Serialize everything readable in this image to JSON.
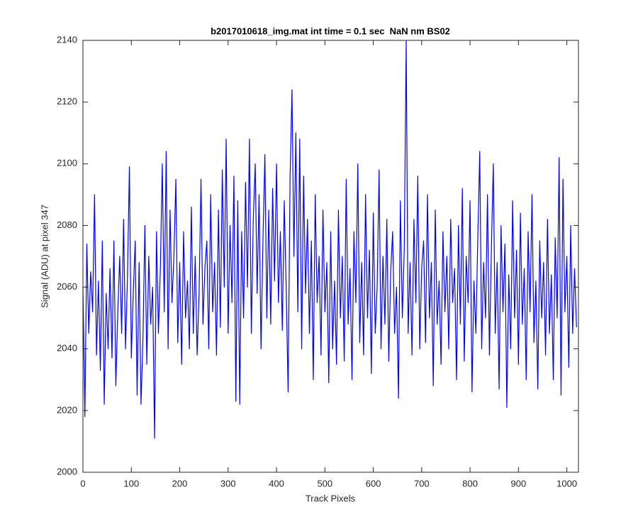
{
  "chart_data": {
    "type": "line",
    "title": "b2017010618_img.mat int time = 0.1 sec  NaN nm BS02",
    "x_label": "Track Pixels",
    "y_label": "Signal (ADU) at pixel 347",
    "xlim": [
      0,
      1024
    ],
    "ylim": [
      2000,
      2140
    ],
    "xticks": [
      0,
      100,
      200,
      300,
      400,
      500,
      600,
      700,
      800,
      900,
      1000
    ],
    "yticks": [
      2000,
      2020,
      2040,
      2060,
      2080,
      2100,
      2120,
      2140
    ],
    "x": [
      0,
      4,
      8,
      12,
      16,
      20,
      24,
      28,
      32,
      36,
      40,
      44,
      48,
      52,
      56,
      60,
      64,
      68,
      72,
      76,
      80,
      84,
      88,
      92,
      96,
      100,
      104,
      108,
      112,
      116,
      120,
      124,
      128,
      132,
      136,
      140,
      144,
      148,
      152,
      156,
      160,
      164,
      168,
      172,
      176,
      180,
      184,
      188,
      192,
      196,
      200,
      204,
      208,
      212,
      216,
      220,
      224,
      228,
      232,
      236,
      240,
      244,
      248,
      252,
      256,
      260,
      264,
      268,
      272,
      276,
      280,
      284,
      288,
      292,
      296,
      300,
      304,
      308,
      312,
      316,
      320,
      324,
      328,
      332,
      336,
      340,
      344,
      348,
      352,
      356,
      360,
      364,
      368,
      372,
      376,
      380,
      384,
      388,
      392,
      396,
      400,
      404,
      408,
      412,
      416,
      420,
      424,
      428,
      432,
      436,
      440,
      444,
      448,
      452,
      456,
      460,
      464,
      468,
      472,
      476,
      480,
      484,
      488,
      492,
      496,
      500,
      504,
      508,
      512,
      516,
      520,
      524,
      528,
      532,
      536,
      540,
      544,
      548,
      552,
      556,
      560,
      564,
      568,
      572,
      576,
      580,
      584,
      588,
      592,
      596,
      600,
      604,
      608,
      612,
      616,
      620,
      624,
      628,
      632,
      636,
      640,
      644,
      648,
      652,
      656,
      660,
      664,
      668,
      672,
      676,
      680,
      684,
      688,
      692,
      696,
      700,
      704,
      708,
      712,
      716,
      720,
      724,
      728,
      732,
      736,
      740,
      744,
      748,
      752,
      756,
      760,
      764,
      768,
      772,
      776,
      780,
      784,
      788,
      792,
      796,
      800,
      804,
      808,
      812,
      816,
      820,
      824,
      828,
      832,
      836,
      840,
      844,
      848,
      852,
      856,
      860,
      864,
      868,
      872,
      876,
      880,
      884,
      888,
      892,
      896,
      900,
      904,
      908,
      912,
      916,
      920,
      924,
      928,
      932,
      936,
      940,
      944,
      948,
      952,
      956,
      960,
      964,
      968,
      972,
      976,
      980,
      984,
      988,
      992,
      996,
      1000,
      1004,
      1008,
      1012,
      1016,
      1020
    ],
    "series": [
      {
        "color": "#0000ff",
        "values": [
          2060,
          2018,
          2074,
          2045,
          2065,
          2052,
          2090,
          2038,
          2062,
          2033,
          2075,
          2022,
          2058,
          2040,
          2066,
          2037,
          2075,
          2028,
          2052,
          2070,
          2045,
          2082,
          2040,
          2063,
          2099,
          2037,
          2058,
          2075,
          2025,
          2068,
          2022,
          2043,
          2080,
          2035,
          2070,
          2048,
          2060,
          2011,
          2078,
          2045,
          2066,
          2100,
          2052,
          2104,
          2040,
          2085,
          2055,
          2070,
          2095,
          2042,
          2068,
          2035,
          2078,
          2050,
          2062,
          2040,
          2086,
          2045,
          2070,
          2038,
          2058,
          2095,
          2048,
          2066,
          2075,
          2040,
          2090,
          2052,
          2068,
          2038,
          2085,
          2047,
          2098,
          2060,
          2108,
          2045,
          2080,
          2055,
          2096,
          2023,
          2088,
          2022,
          2078,
          2050,
          2094,
          2060,
          2108,
          2045,
          2082,
          2100,
          2058,
          2090,
          2040,
          2075,
          2103,
          2050,
          2085,
          2048,
          2092,
          2062,
          2100,
          2055,
          2078,
          2046,
          2088,
          2060,
          2026,
          2095,
          2124,
          2070,
          2110,
          2052,
          2108,
          2040,
          2096,
          2058,
          2082,
          2045,
          2075,
          2030,
          2090,
          2055,
          2070,
          2038,
          2085,
          2052,
          2068,
          2029,
          2078,
          2040,
          2062,
          2035,
          2085,
          2050,
          2070,
          2036,
          2095,
          2048,
          2066,
          2030,
          2078,
          2055,
          2100,
          2042,
          2068,
          2038,
          2090,
          2050,
          2072,
          2032,
          2084,
          2045,
          2060,
          2098,
          2040,
          2070,
          2048,
          2082,
          2036,
          2065,
          2078,
          2045,
          2060,
          2024,
          2088,
          2050,
          2072,
          2140,
          2045,
          2068,
          2038,
          2082,
          2055,
          2096,
          2040,
          2066,
          2075,
          2042,
          2090,
          2050,
          2068,
          2028,
          2085,
          2048,
          2062,
          2035,
          2078,
          2052,
          2070,
          2040,
          2082,
          2055,
          2066,
          2030,
          2080,
          2048,
          2092,
          2036,
          2070,
          2055,
          2088,
          2026,
          2062,
          2045,
          2076,
          2104,
          2040,
          2068,
          2050,
          2090,
          2038,
          2072,
          2100,
          2045,
          2068,
          2027,
          2080,
          2052,
          2074,
          2021,
          2064,
          2040,
          2088,
          2050,
          2072,
          2035,
          2084,
          2048,
          2066,
          2030,
          2078,
          2052,
          2090,
          2042,
          2062,
          2027,
          2075,
          2050,
          2068,
          2038,
          2082,
          2045,
          2064,
          2030,
          2076,
          2050,
          2102,
          2025,
          2095,
          2052,
          2070,
          2034,
          2080,
          2045,
          2066,
          2047
        ]
      }
    ]
  }
}
